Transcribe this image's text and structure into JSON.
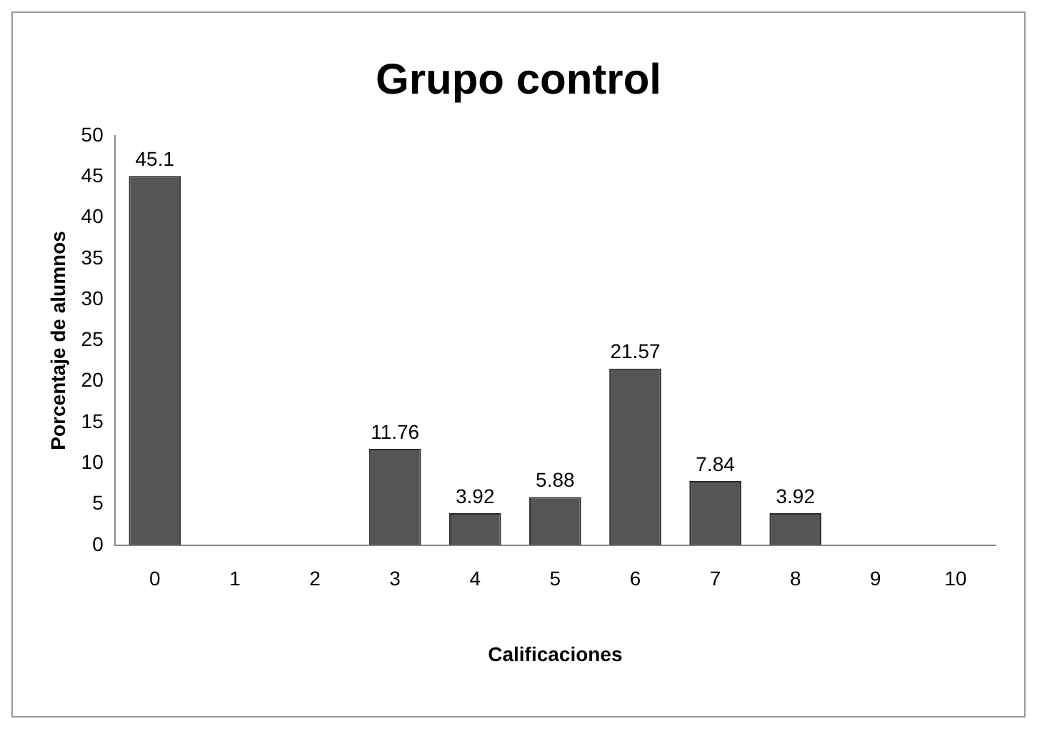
{
  "chart_data": {
    "type": "bar",
    "title": "Grupo control",
    "xlabel": "Calificaciones",
    "ylabel": "Porcentaje de alumnos",
    "categories": [
      "0",
      "1",
      "2",
      "3",
      "4",
      "5",
      "6",
      "7",
      "8",
      "9",
      "10"
    ],
    "values": [
      45.1,
      0,
      0,
      11.76,
      3.92,
      5.88,
      21.57,
      7.84,
      3.92,
      0,
      0
    ],
    "value_labels": [
      "45.1",
      null,
      null,
      "11.76",
      "3.92",
      "5.88",
      "21.57",
      "7.84",
      "3.92",
      null,
      null
    ],
    "color": "#555555",
    "ylim": [
      0,
      50
    ],
    "yticks": [
      0,
      5,
      10,
      15,
      20,
      25,
      30,
      35,
      40,
      45,
      50
    ],
    "grid": false,
    "legend": false
  }
}
